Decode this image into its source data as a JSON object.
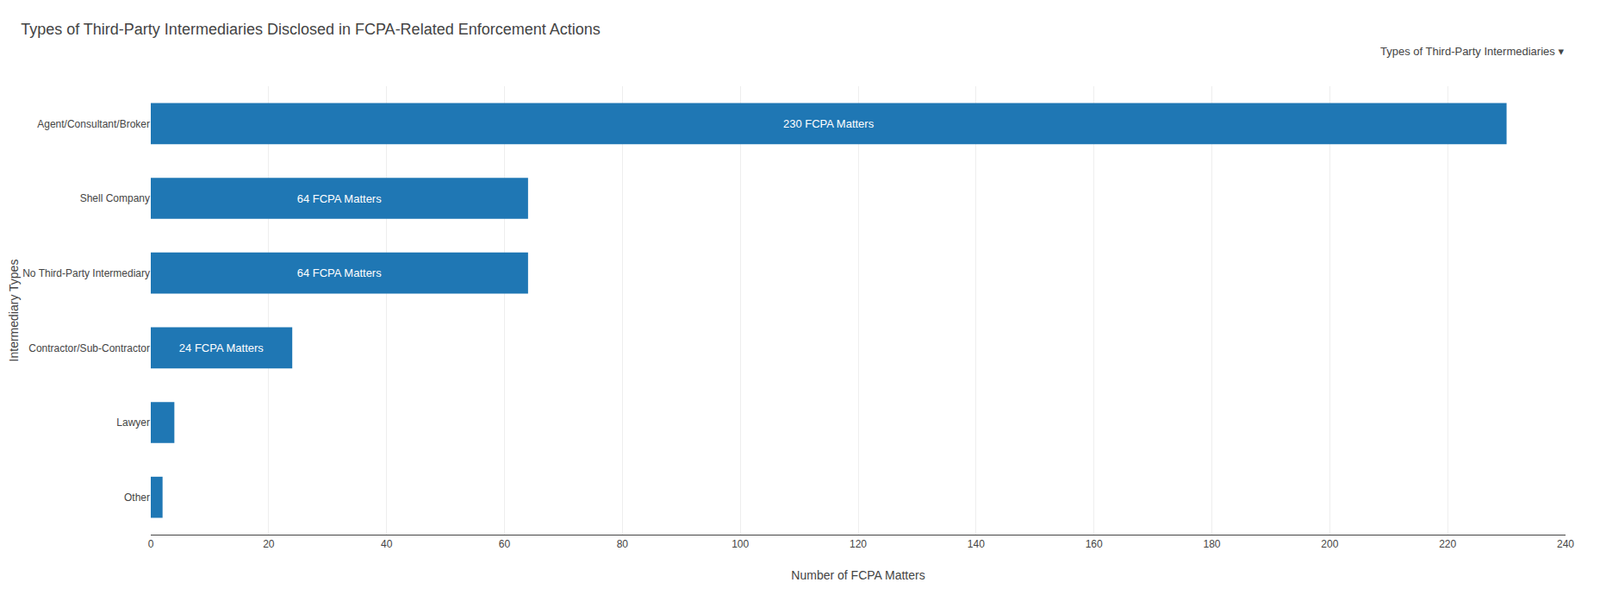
{
  "chart_data": {
    "type": "bar",
    "orientation": "horizontal",
    "title": "Types of Third-Party Intermediaries Disclosed in FCPA-Related Enforcement Actions",
    "annotations": [
      "Types of Third-Party Intermediaries ▾"
    ],
    "categories": [
      "Agent/Consultant/Broker",
      "Shell Company",
      "No Third-Party Intermediary",
      "Contractor/Sub-Contractor",
      "Lawyer",
      "Other"
    ],
    "values": [
      230,
      64,
      64,
      24,
      4,
      2
    ],
    "data_labels": true,
    "value_labels": [
      "230 FCPA Matters",
      "64 FCPA Matters",
      "64 FCPA Matters",
      "24 FCPA Matters",
      null,
      null
    ],
    "x_label": "Number of FCPA Matters",
    "y_label": "Intermediary Types",
    "xlim": [
      0,
      240
    ],
    "xticks": [
      0,
      20,
      40,
      60,
      80,
      100,
      120,
      140,
      160,
      180,
      200,
      220,
      240
    ],
    "grid": true
  }
}
